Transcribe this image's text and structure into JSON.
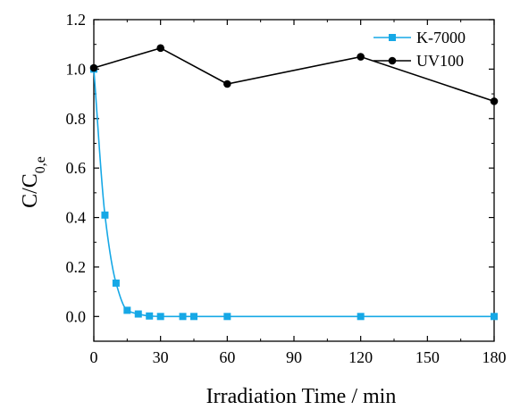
{
  "chart_data": {
    "type": "line",
    "xlabel": "Irradiation Time / min",
    "ylabel": {
      "main": "C/C",
      "sub": "0,e"
    },
    "xlim": [
      0,
      180
    ],
    "ylim": [
      -0.1,
      1.2
    ],
    "x_ticks": [
      0,
      30,
      60,
      90,
      120,
      150,
      180
    ],
    "y_ticks": [
      0.0,
      0.2,
      0.4,
      0.6,
      0.8,
      1.0,
      1.2
    ],
    "x_tick_labels": [
      "0",
      "30",
      "60",
      "90",
      "120",
      "150",
      "180"
    ],
    "y_tick_labels": [
      "0.0",
      "0.2",
      "0.4",
      "0.6",
      "0.8",
      "1.0",
      "1.2"
    ],
    "grid": false,
    "legend_position": "top-right",
    "series": [
      {
        "name": "K-7000",
        "color": "#16A8E6",
        "marker": "square",
        "smooth": true,
        "x": [
          0,
          5,
          10,
          15,
          20,
          25,
          30,
          40,
          45,
          60,
          120,
          180
        ],
        "y": [
          1.0,
          0.41,
          0.135,
          0.025,
          0.01,
          0.002,
          0.0,
          0.0,
          0.0,
          0.0,
          0.0,
          0.0
        ]
      },
      {
        "name": "UV100",
        "color": "#000000",
        "marker": "circle",
        "smooth": false,
        "x": [
          0,
          30,
          60,
          120,
          180
        ],
        "y": [
          1.005,
          1.085,
          0.94,
          1.05,
          0.87
        ]
      }
    ]
  }
}
